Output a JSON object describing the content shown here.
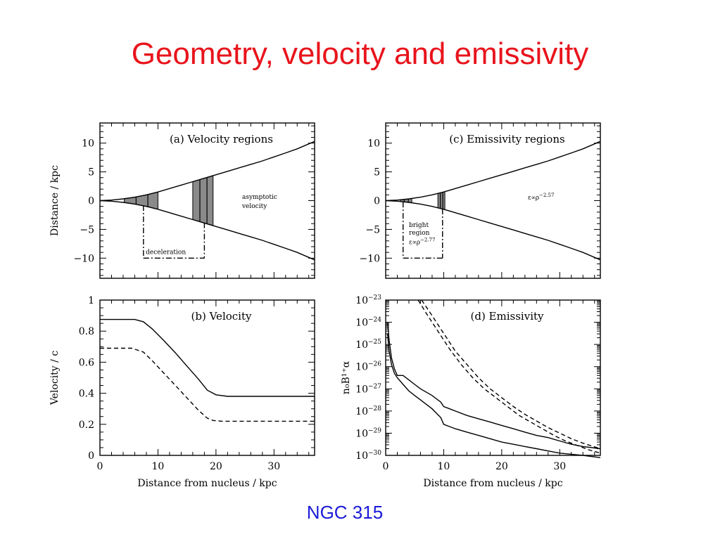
{
  "slide": {
    "title": "Geometry, velocity and emissivity",
    "caption": "NGC 315",
    "title_color": "#e8141c",
    "caption_color": "#1a1ad8"
  },
  "chart_data": [
    {
      "panel": "a",
      "type": "line",
      "title": "(a) Velocity regions",
      "xlabel": "",
      "ylabel": "Distance / kpc",
      "xlim": [
        0,
        37
      ],
      "ylim": [
        -13.5,
        13.5
      ],
      "xticks": [
        0,
        10,
        20,
        30
      ],
      "xtick_labels": [
        "",
        "",
        "",
        ""
      ],
      "yticks": [
        -10,
        -5,
        0,
        5,
        10
      ],
      "ytick_labels": [
        "−10",
        "−5",
        "0",
        "5",
        "10"
      ],
      "series": [
        {
          "style": "solid",
          "x": [
            0,
            2,
            4,
            6,
            8,
            10,
            12,
            14,
            16,
            18,
            20,
            22,
            24,
            26,
            28,
            30,
            32,
            34,
            37
          ],
          "y": [
            0,
            0.1,
            0.3,
            0.6,
            1.0,
            1.5,
            2.1,
            2.7,
            3.3,
            3.9,
            4.5,
            5.1,
            5.7,
            6.3,
            6.9,
            7.6,
            8.3,
            9.0,
            10.3
          ]
        },
        {
          "style": "solid",
          "x": [
            0,
            2,
            4,
            6,
            8,
            10,
            12,
            14,
            16,
            18,
            20,
            22,
            24,
            26,
            28,
            30,
            32,
            34,
            37
          ],
          "y": [
            0,
            -0.1,
            -0.3,
            -0.6,
            -1.0,
            -1.5,
            -2.1,
            -2.7,
            -3.3,
            -3.9,
            -4.5,
            -5.1,
            -5.7,
            -6.3,
            -6.9,
            -7.6,
            -8.3,
            -9.0,
            -10.3
          ]
        }
      ],
      "shaded_regions": [
        [
          4.2,
          10
        ],
        [
          16,
          19.5
        ]
      ],
      "region_markers": [
        {
          "x": 7.5,
          "y_from": -0.8,
          "y_to": -10
        },
        {
          "x": 18,
          "y_from": -3.8,
          "y_to": -10
        }
      ],
      "annotations": [
        {
          "text": "deceleration",
          "x": 7.9,
          "y": -9.3
        },
        {
          "text": "asymptotic",
          "x": 24.5,
          "y": 0.3
        },
        {
          "text": "velocity",
          "x": 24.5,
          "y": -1.3
        }
      ]
    },
    {
      "panel": "b",
      "type": "line",
      "title": "(b) Velocity",
      "xlabel": "Distance from nucleus / kpc",
      "ylabel": "Velocity / c",
      "xlim": [
        0,
        37
      ],
      "ylim": [
        0,
        1
      ],
      "xticks": [
        0,
        10,
        20,
        30
      ],
      "xtick_labels": [
        "0",
        "10",
        "20",
        "30"
      ],
      "yticks": [
        0,
        0.2,
        0.4,
        0.6,
        0.8,
        1
      ],
      "ytick_labels": [
        "0",
        "0.2",
        "0.4",
        "0.6",
        "0.8",
        "1"
      ],
      "series": [
        {
          "style": "solid",
          "x": [
            0,
            6,
            7.5,
            9,
            11,
            13,
            15,
            17,
            18.5,
            20,
            22,
            30,
            37
          ],
          "y": [
            0.875,
            0.875,
            0.86,
            0.815,
            0.74,
            0.66,
            0.575,
            0.49,
            0.42,
            0.39,
            0.38,
            0.38,
            0.38
          ]
        },
        {
          "style": "dashed",
          "x": [
            0,
            5.5,
            7.5,
            9,
            11,
            13,
            15,
            17,
            18.5,
            19.5,
            21,
            30,
            37
          ],
          "y": [
            0.69,
            0.69,
            0.665,
            0.61,
            0.53,
            0.45,
            0.37,
            0.29,
            0.24,
            0.225,
            0.22,
            0.22,
            0.22
          ]
        }
      ]
    },
    {
      "panel": "c",
      "type": "line",
      "title": "(c) Emissivity regions",
      "xlabel": "",
      "ylabel": "",
      "xlim": [
        0,
        37
      ],
      "ylim": [
        -13.5,
        13.5
      ],
      "xticks": [
        0,
        10,
        20,
        30
      ],
      "xtick_labels": [
        "",
        "",
        "",
        ""
      ],
      "yticks": [
        -10,
        -5,
        0,
        5,
        10
      ],
      "ytick_labels": [
        "−10",
        "−5",
        "0",
        "5",
        "10"
      ],
      "series": [
        {
          "style": "solid",
          "x": [
            0,
            2,
            4,
            6,
            8,
            10,
            12,
            14,
            16,
            18,
            20,
            22,
            24,
            26,
            28,
            30,
            32,
            34,
            37
          ],
          "y": [
            0,
            0.1,
            0.3,
            0.6,
            1.0,
            1.5,
            2.1,
            2.7,
            3.3,
            3.9,
            4.5,
            5.1,
            5.7,
            6.3,
            6.9,
            7.6,
            8.3,
            9.0,
            10.3
          ]
        },
        {
          "style": "solid",
          "x": [
            0,
            2,
            4,
            6,
            8,
            10,
            12,
            14,
            16,
            18,
            20,
            22,
            24,
            26,
            28,
            30,
            32,
            34,
            37
          ],
          "y": [
            0,
            -0.1,
            -0.3,
            -0.6,
            -1.0,
            -1.5,
            -2.1,
            -2.7,
            -3.3,
            -3.9,
            -4.5,
            -5.1,
            -5.7,
            -6.3,
            -6.9,
            -7.6,
            -8.3,
            -9.0,
            -10.3
          ]
        }
      ],
      "shaded_regions": [
        [
          2.5,
          4.5
        ],
        [
          9,
          10.2
        ]
      ],
      "region_markers": [
        {
          "x": 3,
          "y_from": -0.2,
          "y_to": -10
        },
        {
          "x": 9.8,
          "y_from": -1.4,
          "y_to": -10
        }
      ],
      "annotations": [
        {
          "text": "bright",
          "x": 4,
          "y": -4.6
        },
        {
          "text": "region",
          "x": 4,
          "y": -5.9
        },
        {
          "text": "ε∝ρ^−2.77",
          "x": 4,
          "y": -7.6
        },
        {
          "text": "ε∝ρ^−2.57",
          "x": 24.5,
          "y": 0.2
        }
      ]
    },
    {
      "panel": "d",
      "type": "line",
      "title": "(d) Emissivity",
      "xlabel": "Distance from nucleus / kpc",
      "ylabel": "n₀B¹⁺α",
      "xlim": [
        0,
        37
      ],
      "ylim": [
        -30,
        -23
      ],
      "log_y": true,
      "xticks": [
        0,
        10,
        20,
        30
      ],
      "xtick_labels": [
        "0",
        "10",
        "20",
        "30"
      ],
      "yticks": [
        -30,
        -29,
        -28,
        -27,
        -26,
        -25,
        -24,
        -23
      ],
      "ytick_labels": [
        "10⁻³⁰",
        "10⁻²⁹",
        "10⁻²⁸",
        "10⁻²⁷",
        "10⁻²⁶",
        "10⁻²⁵",
        "10⁻²⁴",
        "10⁻²³"
      ],
      "series": [
        {
          "style": "solid",
          "x": [
            0.3,
            0.6,
            1,
            1.5,
            2,
            3,
            4,
            5,
            6,
            8,
            9.5,
            10,
            11,
            12,
            14,
            16,
            18,
            20,
            22,
            24,
            26,
            28,
            30,
            32,
            34,
            37
          ],
          "y": [
            -24.0,
            -24.8,
            -25.6,
            -26.1,
            -26.4,
            -26.4,
            -26.6,
            -26.8,
            -27.0,
            -27.3,
            -27.6,
            -27.8,
            -27.9,
            -28.0,
            -28.2,
            -28.35,
            -28.5,
            -28.65,
            -28.8,
            -28.95,
            -29.1,
            -29.2,
            -29.35,
            -29.5,
            -29.6,
            -29.7
          ]
        },
        {
          "style": "solid",
          "x": [
            0.3,
            0.6,
            1,
            1.5,
            2,
            3,
            4,
            5,
            6,
            8,
            9.5,
            10,
            11,
            12,
            14,
            16,
            18,
            20,
            22,
            24,
            26,
            28,
            30,
            32,
            34,
            37
          ],
          "y": [
            -24.5,
            -25.3,
            -25.9,
            -26.3,
            -26.5,
            -26.8,
            -27.1,
            -27.3,
            -27.5,
            -27.9,
            -28.3,
            -28.6,
            -28.7,
            -28.8,
            -28.95,
            -29.1,
            -29.25,
            -29.4,
            -29.5,
            -29.6,
            -29.7,
            -29.8,
            -29.9,
            -29.95,
            -30.0,
            -30.1
          ]
        },
        {
          "style": "dashed",
          "x": [
            5.6,
            7,
            9,
            11,
            13,
            15,
            17,
            19,
            21,
            23,
            25,
            27,
            29,
            31,
            33,
            35,
            37
          ],
          "y": [
            -23.0,
            -23.6,
            -24.4,
            -25.2,
            -25.9,
            -26.5,
            -27.0,
            -27.4,
            -27.8,
            -28.2,
            -28.5,
            -28.8,
            -29.1,
            -29.35,
            -29.55,
            -29.75,
            -29.9
          ]
        },
        {
          "style": "dashed",
          "x": [
            6.2,
            8,
            10,
            12,
            14,
            16,
            18,
            20,
            22,
            24,
            26,
            28,
            30,
            32,
            34,
            37
          ],
          "y": [
            -23.0,
            -23.7,
            -24.5,
            -25.3,
            -25.9,
            -26.5,
            -27.0,
            -27.4,
            -27.8,
            -28.15,
            -28.45,
            -28.75,
            -29.0,
            -29.25,
            -29.45,
            -29.7
          ]
        }
      ]
    }
  ]
}
